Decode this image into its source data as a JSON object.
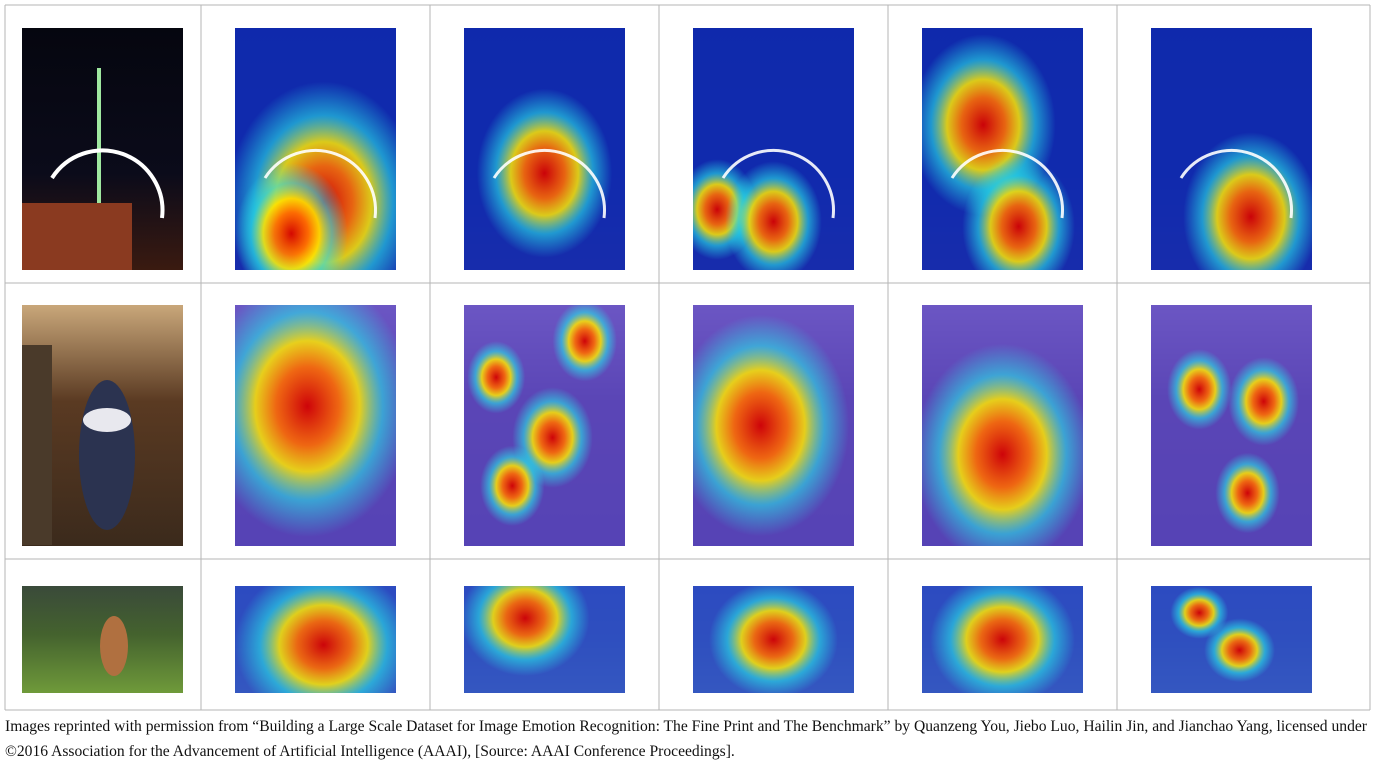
{
  "caption": "Images reprinted with permission from “Building a Large Scale Dataset for Image Emotion Recognition: The Fine Print and The Benchmark” by Quanzeng You, Jiebo Luo, Hailin Jin, and Jianchao Yang, licensed under ©2016 Association for the Advancement of Artificial Intelligence (AAAI), [Source: AAAI Conference Proceedings]."
}
